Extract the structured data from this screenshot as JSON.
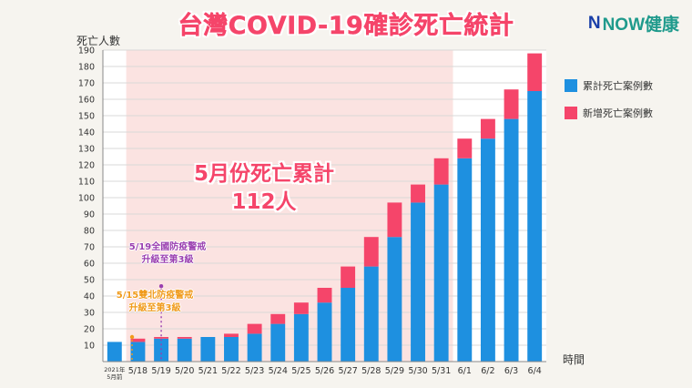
{
  "title": "台灣COVID-19確診死亡統計",
  "brand": {
    "logo_letter": "N",
    "name": "NOW健康"
  },
  "chart_data": {
    "type": "bar",
    "stacked": true,
    "ylabel": "死亡人數",
    "xlabel": "時間",
    "ylim": [
      0,
      190
    ],
    "yticks": [
      10,
      20,
      30,
      40,
      50,
      60,
      70,
      80,
      90,
      100,
      110,
      120,
      130,
      140,
      150,
      160,
      170,
      180,
      190
    ],
    "categories": [
      "2021年\n5月前",
      "5/18",
      "5/19",
      "5/20",
      "5/21",
      "5/22",
      "5/23",
      "5/24",
      "5/25",
      "5/26",
      "5/27",
      "5/28",
      "5/29",
      "5/30",
      "5/31",
      "6/1",
      "6/2",
      "6/3",
      "6/4"
    ],
    "series": [
      {
        "name": "累計死亡案例數",
        "color": "#1e90e0",
        "values": [
          12,
          12,
          14,
          14,
          15,
          15,
          17,
          23,
          29,
          36,
          45,
          58,
          76,
          97,
          108,
          124,
          136,
          148,
          165
        ]
      },
      {
        "name": "新增死亡案例數",
        "color": "#f5456a",
        "values": [
          0,
          2,
          1,
          1,
          0,
          2,
          6,
          6,
          7,
          9,
          13,
          18,
          21,
          11,
          16,
          12,
          12,
          18,
          23
        ]
      }
    ],
    "grid": true,
    "legend_position": "right",
    "highlight": {
      "from": "5/18",
      "to": "5/31",
      "color": "#fbe3e1",
      "lines": [
        "5月份死亡累計",
        "112人"
      ]
    },
    "annotations": [
      {
        "lines": [
          "5/19全國防疫警戒",
          "升級至第3級"
        ],
        "category": "5/19",
        "value": 46,
        "color": "#9a3fb0"
      },
      {
        "lines": [
          "5/15雙北防疫警戒",
          "升級至第3級"
        ],
        "category": "2021年\n5月前",
        "value": 15,
        "color": "#f09a1a"
      }
    ]
  }
}
